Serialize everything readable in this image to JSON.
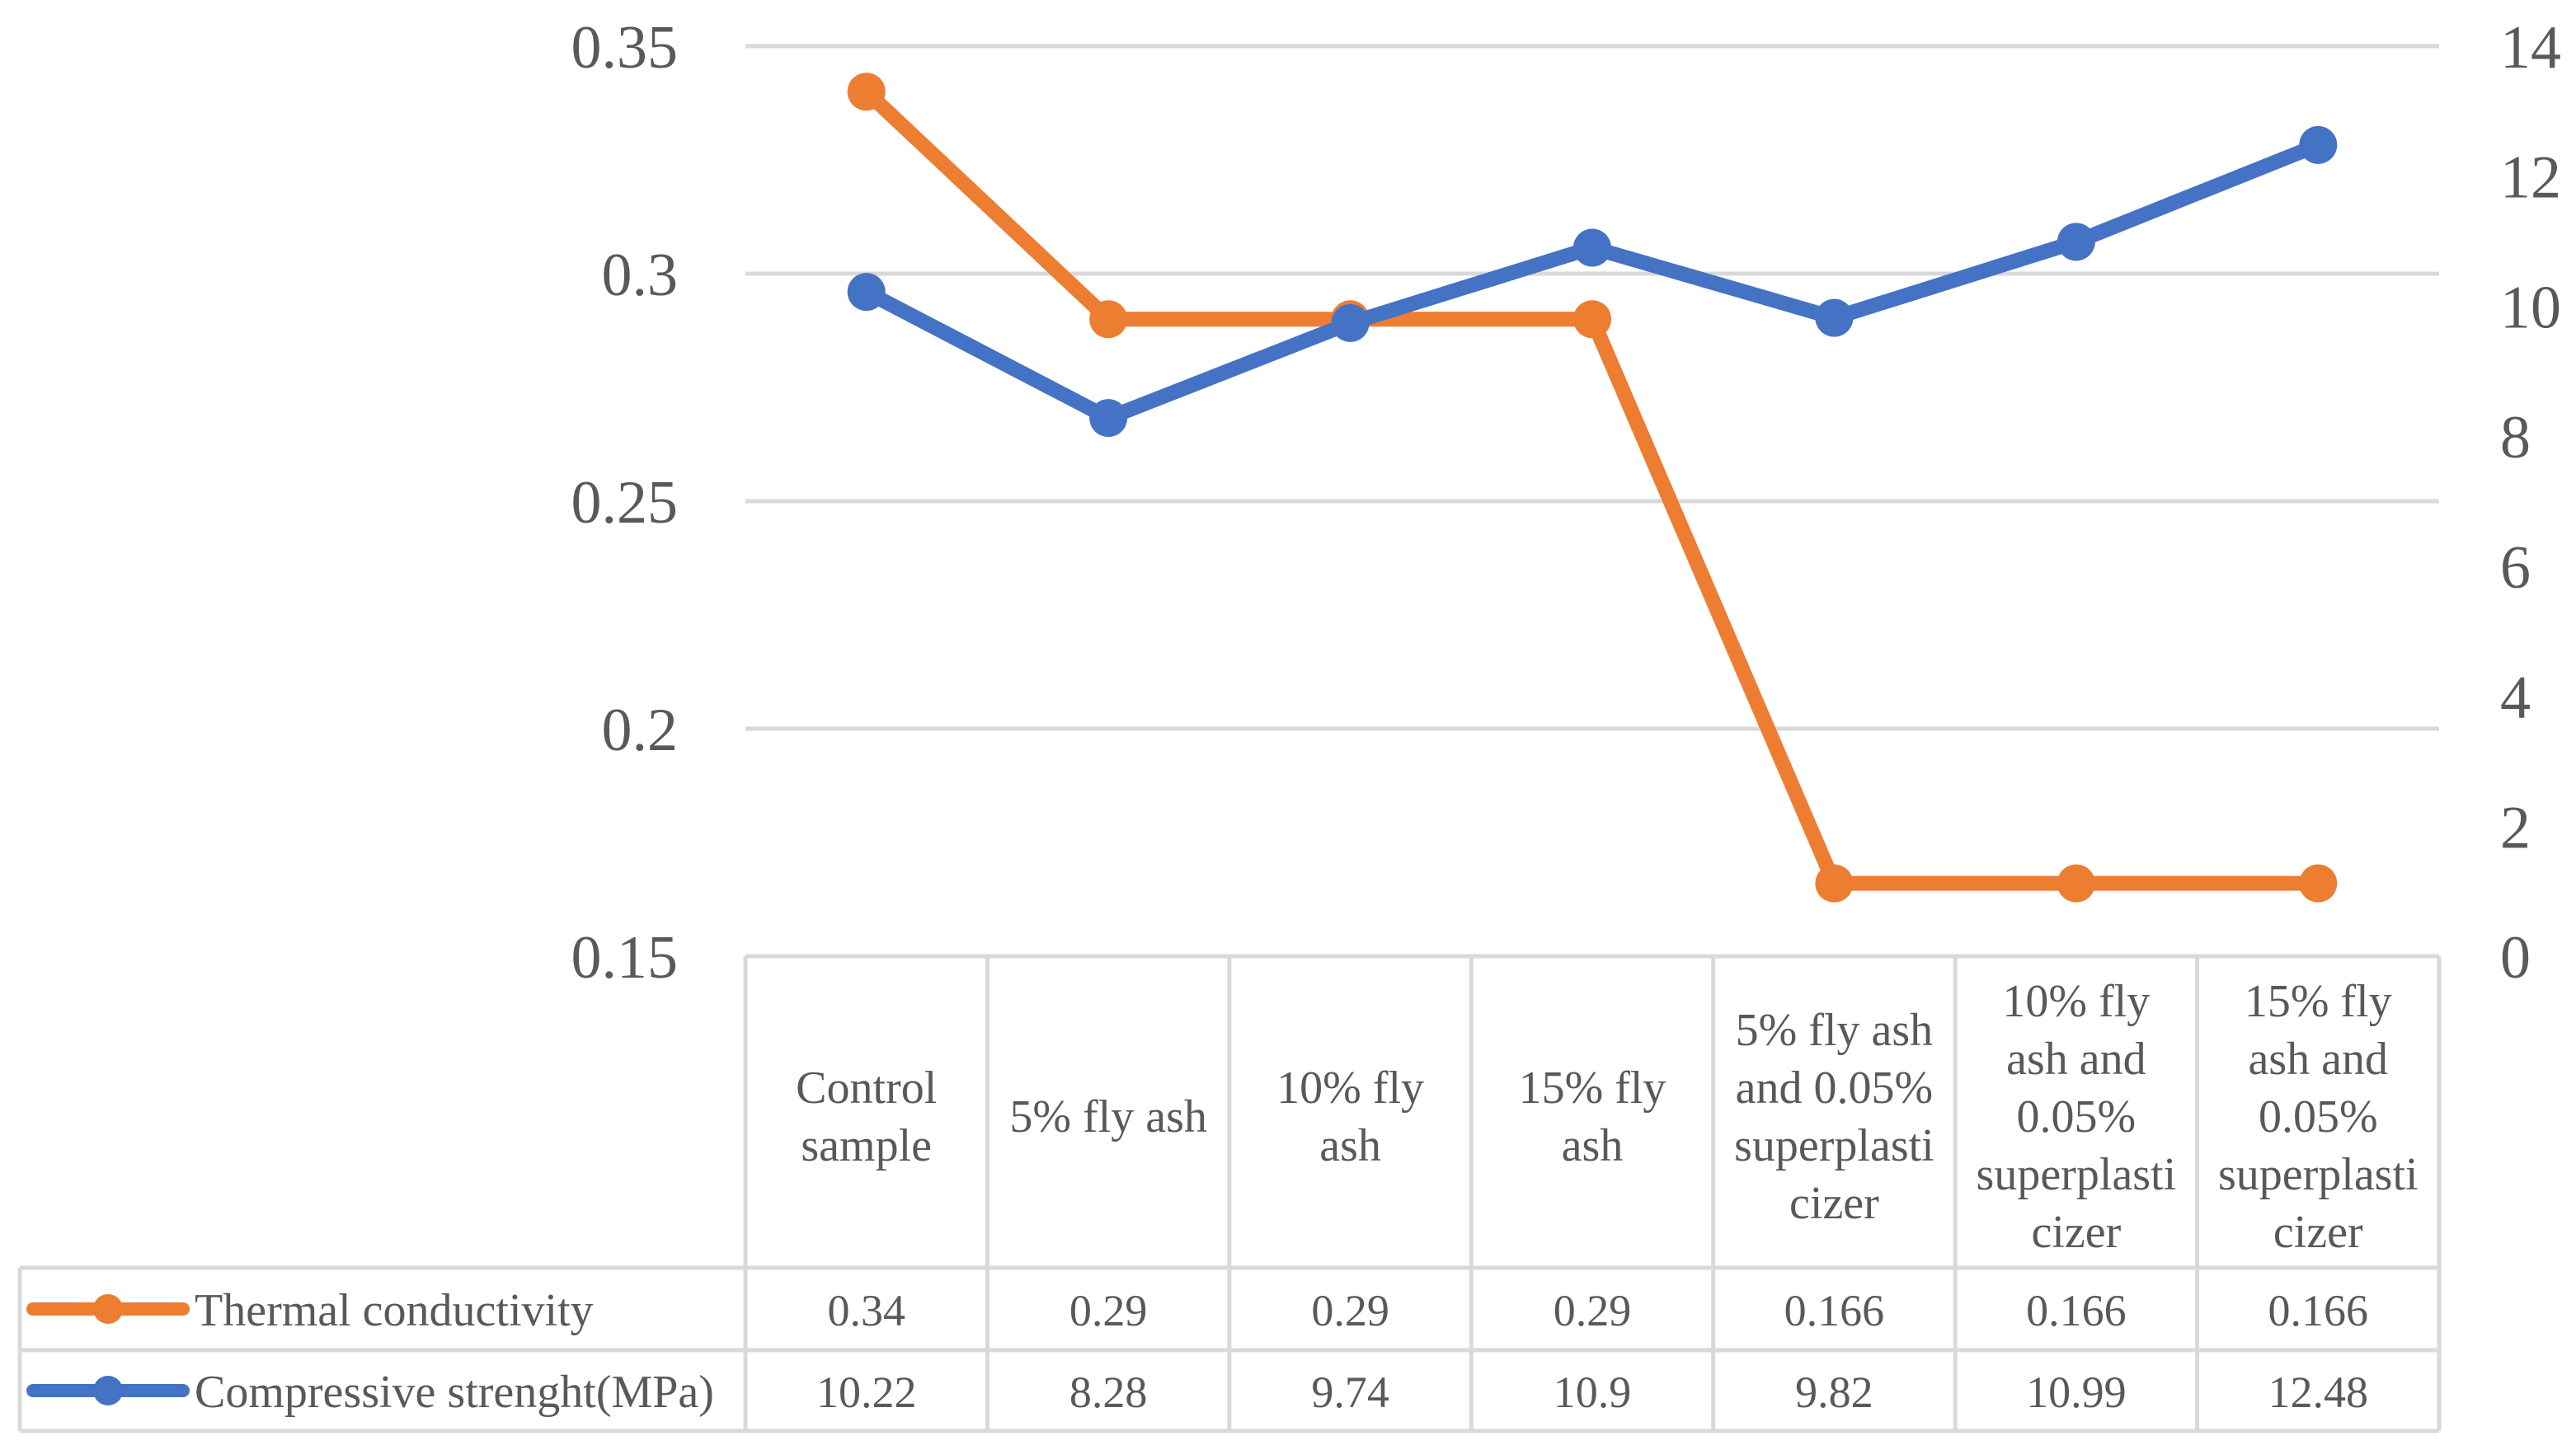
{
  "chart_data": {
    "type": "line",
    "title": "",
    "xlabel": "",
    "categories": [
      [
        "Control",
        "sample"
      ],
      [
        "5% fly ash"
      ],
      [
        "10% fly",
        "ash"
      ],
      [
        "15% fly",
        "ash"
      ],
      [
        "5% fly ash",
        "and 0.05%",
        "superplasti",
        "cizer"
      ],
      [
        "10% fly",
        "ash and",
        "0.05%",
        "superplasti",
        "cizer"
      ],
      [
        "15% fly",
        "ash and",
        "0.05%",
        "superplasti",
        "cizer"
      ]
    ],
    "left_axis": {
      "min": 0.15,
      "max": 0.35,
      "ticks": [
        "0.15",
        "0.2",
        "0.25",
        "0.3",
        "0.35"
      ],
      "tick_values": [
        0.15,
        0.2,
        0.25,
        0.3,
        0.35
      ]
    },
    "right_axis": {
      "min": 0,
      "max": 14,
      "ticks": [
        "0",
        "2",
        "4",
        "6",
        "8",
        "10",
        "12",
        "14"
      ],
      "tick_values": [
        0,
        2,
        4,
        6,
        8,
        10,
        12,
        14
      ]
    },
    "grid": true,
    "legend": "data-table-below",
    "series": [
      {
        "name": "Thermal conductivity",
        "axis": "left",
        "color": "#ED7D31",
        "values": [
          0.34,
          0.29,
          0.29,
          0.29,
          0.166,
          0.166,
          0.166
        ],
        "labels": [
          "0.34",
          "0.29",
          "0.29",
          "0.29",
          "0.166",
          "0.166",
          "0.166"
        ]
      },
      {
        "name": "Compressive strenght(MPa)",
        "axis": "right",
        "color": "#4472C4",
        "values": [
          10.22,
          8.28,
          9.74,
          10.9,
          9.82,
          10.99,
          12.48
        ],
        "labels": [
          "10.22",
          "8.28",
          "9.74",
          "10.9",
          "9.82",
          "10.99",
          "12.48"
        ]
      }
    ]
  },
  "colors": {
    "gridline": "#d9d9d9",
    "table_border": "#d9d9d9",
    "text": "#595959"
  }
}
